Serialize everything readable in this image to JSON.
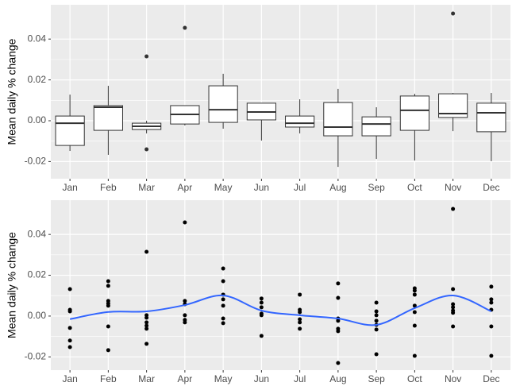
{
  "chart_data": [
    {
      "type": "box",
      "ylabel": "Mean daily % change",
      "categories": [
        "Jan",
        "Feb",
        "Mar",
        "Apr",
        "May",
        "Jun",
        "Jul",
        "Aug",
        "Sep",
        "Oct",
        "Nov",
        "Dec"
      ],
      "boxes": [
        {
          "min": -0.0148,
          "q1": -0.0121,
          "median": -0.0012,
          "q3": 0.0023,
          "max": 0.0128,
          "outliers": []
        },
        {
          "min": -0.0167,
          "q1": -0.0047,
          "median": 0.0066,
          "q3": 0.0074,
          "max": 0.0171,
          "outliers": []
        },
        {
          "min": -0.0062,
          "q1": -0.0043,
          "median": -0.0027,
          "q3": -0.0012,
          "max": 0.0,
          "outliers": [
            0.0315,
            -0.014
          ]
        },
        {
          "min": -0.0023,
          "q1": -0.0016,
          "median": 0.0031,
          "q3": 0.0074,
          "max": 0.0074,
          "outliers": [
            0.0455
          ]
        },
        {
          "min": -0.0039,
          "q1": -0.0008,
          "median": 0.0054,
          "q3": 0.0171,
          "max": 0.023,
          "outliers": []
        },
        {
          "min": -0.0097,
          "q1": 0.0004,
          "median": 0.0043,
          "q3": 0.0086,
          "max": 0.0086,
          "outliers": []
        },
        {
          "min": -0.0062,
          "q1": -0.0031,
          "median": -0.0012,
          "q3": 0.0023,
          "max": 0.0105,
          "outliers": []
        },
        {
          "min": -0.0226,
          "q1": -0.0074,
          "median": -0.0031,
          "q3": 0.0089,
          "max": 0.0156,
          "outliers": []
        },
        {
          "min": -0.0187,
          "q1": -0.0074,
          "median": -0.0016,
          "q3": 0.0019,
          "max": 0.0066,
          "outliers": []
        },
        {
          "min": -0.0195,
          "q1": -0.0047,
          "median": 0.0051,
          "q3": 0.0121,
          "max": 0.0132,
          "outliers": []
        },
        {
          "min": -0.0051,
          "q1": 0.0016,
          "median": 0.0035,
          "q3": 0.0132,
          "max": 0.0136,
          "outliers": [
            0.0525
          ]
        },
        {
          "min": -0.0198,
          "q1": -0.0054,
          "median": 0.0039,
          "q3": 0.0086,
          "max": 0.0136,
          "outliers": []
        }
      ],
      "ylim": [
        -0.0284,
        0.0568
      ],
      "yticks": [
        -0.02,
        {
          "value": 0,
          "label": "0.00"
        },
        0.02,
        0.04
      ],
      "grid": true
    },
    {
      "type": "scatter",
      "ylabel": "Mean daily % change",
      "categories": [
        "Jan",
        "Feb",
        "Mar",
        "Apr",
        "May",
        "Jun",
        "Jul",
        "Aug",
        "Sep",
        "Oct",
        "Nov",
        "Dec"
      ],
      "points": [
        [
          0.0132,
          0.0031,
          0.0023,
          -0.0058,
          -0.012,
          -0.0152
        ],
        [
          0.0171,
          0.0148,
          0.0074,
          0.0062,
          0.0051,
          -0.0051,
          -0.0167
        ],
        [
          0.0315,
          0.0004,
          -0.0008,
          -0.0031,
          -0.0047,
          -0.0062,
          -0.0136
        ],
        [
          0.0459,
          0.0074,
          0.0058,
          0.0004,
          -0.0019,
          -0.0031
        ],
        [
          0.0233,
          0.0171,
          0.0105,
          0.0082,
          0.0051,
          -0.0012,
          -0.0035
        ],
        [
          0.0086,
          0.0066,
          0.0043,
          0.0012,
          0.0004,
          -0.0097
        ],
        [
          0.0105,
          0.0031,
          0.0019,
          -0.0016,
          -0.0031,
          -0.0062
        ],
        [
          0.016,
          0.0089,
          -0.0012,
          -0.0023,
          -0.0062,
          -0.0074,
          -0.023
        ],
        [
          0.0066,
          0.0023,
          0.0004,
          -0.0023,
          -0.0043,
          -0.0066,
          -0.0187
        ],
        [
          0.0136,
          0.0125,
          0.0105,
          0.0051,
          0.0019,
          -0.0047,
          -0.0195
        ],
        [
          0.0525,
          0.0132,
          0.0058,
          0.0043,
          0.0027,
          0.0016,
          -0.0051
        ],
        [
          0.0144,
          0.0082,
          0.0066,
          0.0031,
          -0.0051,
          -0.0195
        ]
      ],
      "smooth": {
        "color": "#3366ff",
        "values": [
          -0.0015,
          0.002,
          0.0023,
          0.0054,
          0.0101,
          0.0027,
          0.0004,
          -0.0012,
          -0.0043,
          0.0039,
          0.0101,
          0.0023
        ]
      },
      "ylim": [
        -0.0265,
        0.0568
      ],
      "yticks": [
        -0.02,
        {
          "value": 0,
          "label": "0.00"
        },
        0.02,
        0.04
      ],
      "grid": true
    }
  ]
}
